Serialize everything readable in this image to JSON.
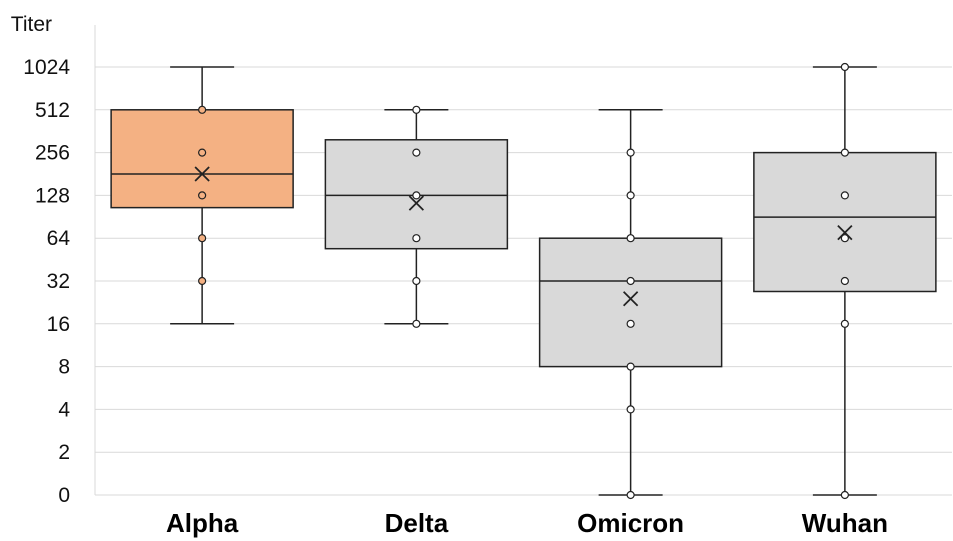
{
  "chart_data": {
    "type": "box",
    "title": "",
    "xlabel": "",
    "ylabel": "Titer",
    "y_scale": "log2",
    "y_ticks": [
      "0",
      "2",
      "4",
      "8",
      "16",
      "32",
      "64",
      "128",
      "256",
      "512",
      "1024"
    ],
    "y_tick_values": [
      1,
      2,
      4,
      8,
      16,
      32,
      64,
      128,
      256,
      512,
      1024
    ],
    "grid": true,
    "legend": "none",
    "categories": [
      "Alpha",
      "Delta",
      "Omicron",
      "Wuhan"
    ],
    "boxes": [
      {
        "category": "Alpha",
        "color": "#f4b183",
        "whisker_low": 16,
        "q1": 105,
        "median": 181,
        "q3": 512,
        "whisker_high": 1024,
        "mean": 181,
        "points": [
          512,
          256,
          128,
          64,
          32
        ]
      },
      {
        "category": "Delta",
        "color": "#d9d9d9",
        "whisker_low": 16,
        "q1": 54,
        "median": 128,
        "q3": 315,
        "whisker_high": 512,
        "mean": 113,
        "points": [
          512,
          256,
          128,
          64,
          32,
          16
        ]
      },
      {
        "category": "Omicron",
        "color": "#d9d9d9",
        "whisker_low": 1,
        "q1": 8,
        "median": 32,
        "q3": 64,
        "whisker_high": 512,
        "mean": 24,
        "points": [
          256,
          128,
          64,
          32,
          16,
          8,
          4,
          1
        ]
      },
      {
        "category": "Wuhan",
        "color": "#d9d9d9",
        "whisker_low": 1,
        "q1": 27,
        "median": 90,
        "q3": 256,
        "whisker_high": 1024,
        "mean": 70,
        "points": [
          1024,
          256,
          128,
          64,
          32,
          16,
          1
        ]
      }
    ]
  }
}
